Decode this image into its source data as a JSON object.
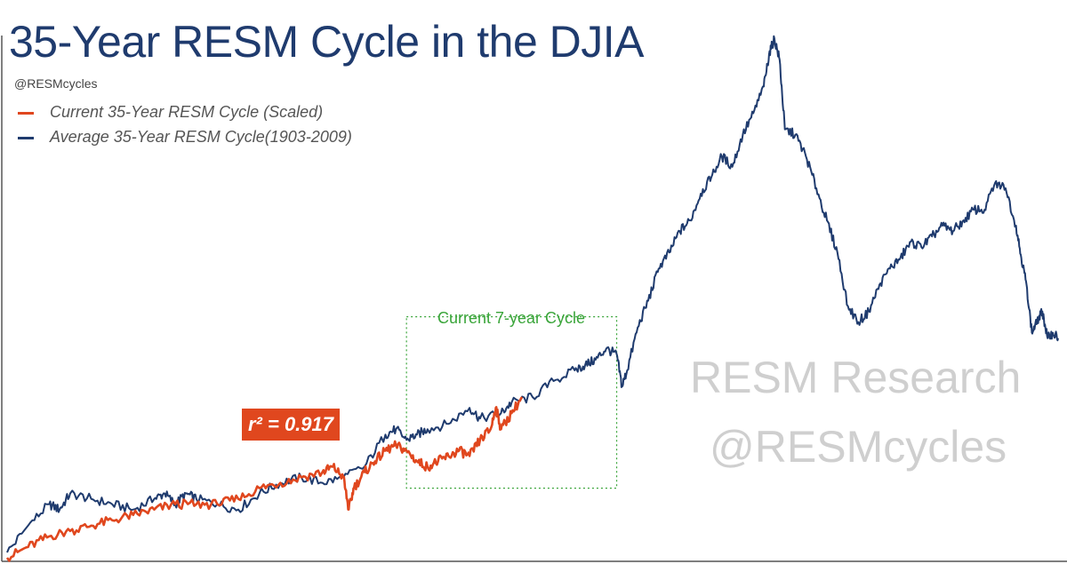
{
  "colors": {
    "current": "#e0471e",
    "average": "#1f3b6e",
    "highlight_box": "#3aa53a",
    "watermark": "#cfcfcf"
  },
  "header": {
    "title": "35-Year RESM Cycle in the DJIA",
    "handle": "@RESMcycles"
  },
  "legend": [
    {
      "label": "Current 35-Year RESM Cycle (Scaled)",
      "color": "#e0471e"
    },
    {
      "label": "Average 35-Year RESM Cycle(1903-2009)",
      "color": "#1f3b6e"
    }
  ],
  "annotations": {
    "highlight_label": "Current 7-year Cycle",
    "r_squared": "r² = 0.917",
    "watermark_line1": "RESM Research",
    "watermark_line2": "@RESMcycles"
  },
  "chart_data": {
    "type": "line",
    "title": "35-Year RESM Cycle in the DJIA",
    "xlabel": "",
    "ylabel": "",
    "grid": false,
    "legend_position": "top-left",
    "x_range": [
      0,
      100
    ],
    "y_range": [
      0,
      100
    ],
    "highlight_region": {
      "x": [
        38,
        58
      ],
      "y": [
        13,
        45
      ]
    },
    "series": [
      {
        "name": "Average 35-Year RESM Cycle(1903-2009)",
        "points": [
          [
            0,
            1
          ],
          [
            2,
            6
          ],
          [
            4,
            10
          ],
          [
            5,
            9
          ],
          [
            6,
            12
          ],
          [
            8,
            11
          ],
          [
            10,
            10
          ],
          [
            12,
            9
          ],
          [
            14,
            11
          ],
          [
            15,
            12
          ],
          [
            16,
            10
          ],
          [
            17,
            12
          ],
          [
            18,
            11
          ],
          [
            20,
            10
          ],
          [
            22,
            9
          ],
          [
            24,
            12
          ],
          [
            26,
            14
          ],
          [
            28,
            15
          ],
          [
            30,
            14
          ],
          [
            32,
            15
          ],
          [
            34,
            17
          ],
          [
            36,
            23
          ],
          [
            37,
            24
          ],
          [
            38,
            22
          ],
          [
            39,
            23
          ],
          [
            40,
            24
          ],
          [
            42,
            25
          ],
          [
            44,
            28
          ],
          [
            45,
            26
          ],
          [
            47,
            27
          ],
          [
            48,
            29
          ],
          [
            50,
            30
          ],
          [
            52,
            33
          ],
          [
            54,
            35
          ],
          [
            55,
            36
          ],
          [
            56,
            37
          ],
          [
            57,
            39
          ],
          [
            58,
            38
          ],
          [
            58.5,
            32
          ],
          [
            59,
            35
          ],
          [
            60,
            43
          ],
          [
            61,
            48
          ],
          [
            62,
            54
          ],
          [
            63,
            57
          ],
          [
            64,
            61
          ],
          [
            65,
            63
          ],
          [
            66,
            68
          ],
          [
            67,
            71
          ],
          [
            68,
            75
          ],
          [
            69,
            73
          ],
          [
            70,
            79
          ],
          [
            71,
            83
          ],
          [
            72,
            88
          ],
          [
            72.5,
            94
          ],
          [
            73,
            97
          ],
          [
            73.5,
            93
          ],
          [
            74,
            80
          ],
          [
            75,
            79
          ],
          [
            76,
            75
          ],
          [
            77,
            69
          ],
          [
            78,
            63
          ],
          [
            79,
            57
          ],
          [
            80,
            47
          ],
          [
            81,
            44
          ],
          [
            82,
            46
          ],
          [
            83,
            51
          ],
          [
            84,
            54
          ],
          [
            85,
            56
          ],
          [
            86,
            59
          ],
          [
            87,
            58
          ],
          [
            88,
            60
          ],
          [
            89,
            62
          ],
          [
            90,
            61
          ],
          [
            91,
            63
          ],
          [
            92,
            65
          ],
          [
            93,
            65
          ],
          [
            94,
            70
          ],
          [
            95,
            69
          ],
          [
            96,
            62
          ],
          [
            96.5,
            56
          ],
          [
            97,
            51
          ],
          [
            97.5,
            42
          ],
          [
            98,
            44
          ],
          [
            98.5,
            46
          ],
          [
            99,
            41
          ],
          [
            99.5,
            42
          ],
          [
            100,
            41
          ]
        ]
      },
      {
        "name": "Current 35-Year RESM Cycle (Scaled)",
        "points": [
          [
            0,
            0
          ],
          [
            2,
            2
          ],
          [
            4,
            4
          ],
          [
            6,
            5
          ],
          [
            8,
            6
          ],
          [
            10,
            7
          ],
          [
            12,
            8
          ],
          [
            14,
            9
          ],
          [
            16,
            10
          ],
          [
            18,
            10
          ],
          [
            20,
            10
          ],
          [
            22,
            11
          ],
          [
            24,
            13
          ],
          [
            26,
            14
          ],
          [
            28,
            15
          ],
          [
            30,
            16
          ],
          [
            31,
            17
          ],
          [
            32,
            15
          ],
          [
            32.5,
            9
          ],
          [
            33,
            13
          ],
          [
            34,
            16
          ],
          [
            35,
            18
          ],
          [
            36,
            20
          ],
          [
            37,
            21
          ],
          [
            38,
            20
          ],
          [
            39,
            18
          ],
          [
            40,
            17
          ],
          [
            41,
            18
          ],
          [
            42,
            19
          ],
          [
            43,
            20
          ],
          [
            44,
            19
          ],
          [
            45,
            22
          ],
          [
            46,
            24
          ],
          [
            46.5,
            28
          ],
          [
            47,
            24
          ],
          [
            48,
            27
          ],
          [
            49,
            30
          ]
        ]
      }
    ]
  }
}
